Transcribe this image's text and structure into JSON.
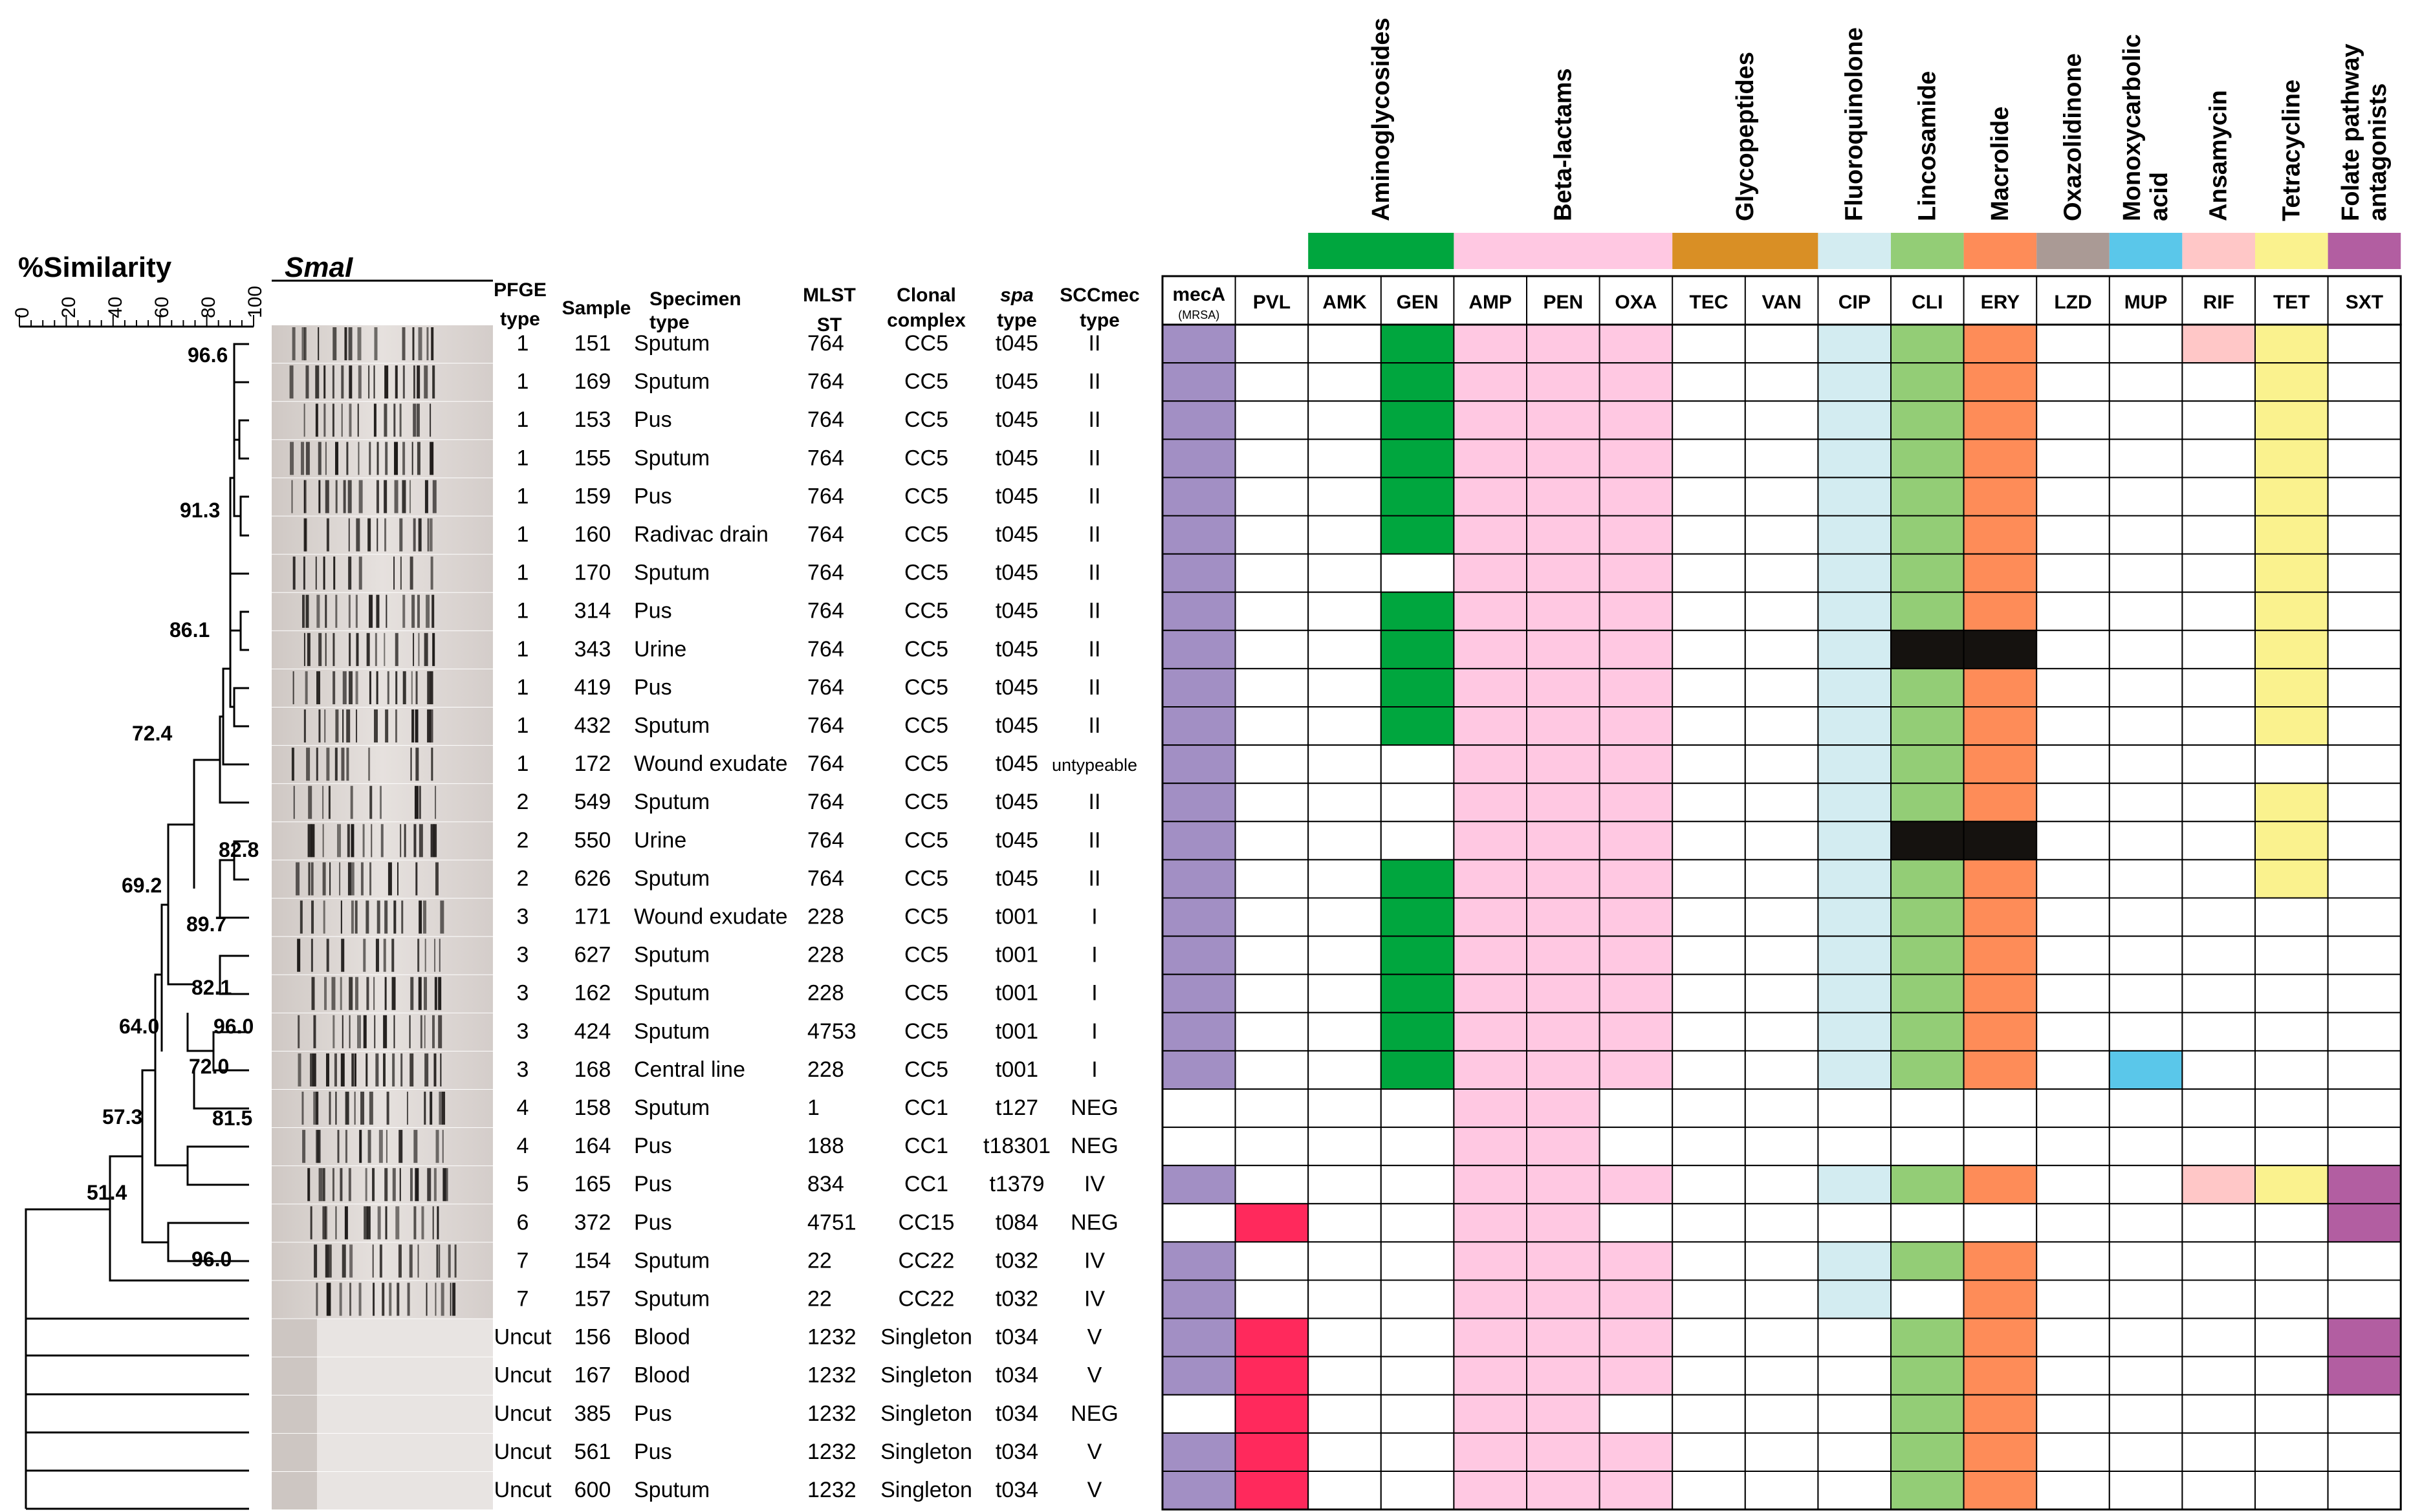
{
  "similarity_label": "%Similarity",
  "axis_ticks": [
    "0",
    "20",
    "40",
    "60",
    "80",
    "100"
  ],
  "enzyme_label": "SmaI",
  "headers": {
    "pfge": [
      "PFGE",
      "type"
    ],
    "sample": "Sample",
    "specimen": [
      "Specimen",
      "type"
    ],
    "mlst": [
      "MLST",
      "ST"
    ],
    "clonal": [
      "Clonal",
      "complex"
    ],
    "spa": [
      "spa",
      "type"
    ],
    "scc": [
      "SCCmec",
      "type"
    ]
  },
  "node_values": [
    "96.6",
    "91.3",
    "86.1",
    "72.4",
    "82.8",
    "69.2",
    "89.7",
    "82.1",
    "96.0",
    "72.0",
    "64.0",
    "81.5",
    "57.3",
    "51.4",
    "96.0"
  ],
  "categories": [
    {
      "name": "Aminoglycosides",
      "color": "#00a63e"
    },
    {
      "name": "Beta-lactams",
      "color": "#ffc8e2"
    },
    {
      "name": "Glycopeptides",
      "color": "#d98f25"
    },
    {
      "name": "Fluoroquinolone",
      "color": "#d3ecf1"
    },
    {
      "name": "Lincosamide",
      "color": "#93cd76"
    },
    {
      "name": "Macrolide",
      "color": "#fe8c58"
    },
    {
      "name": "Oxazolidinone",
      "color": "#aa9a95"
    },
    {
      "name": "Monoxycarbolic acid",
      "color": "#5ac7ea"
    },
    {
      "name": "Ansamycin",
      "color": "#ffc7c7"
    },
    {
      "name": "Tetracycline",
      "color": "#faf28e"
    },
    {
      "name": "Folate pathway antagonists",
      "color": "#b25ea1"
    }
  ],
  "columns": [
    "mecA",
    "PVL",
    "AMK",
    "GEN",
    "AMP",
    "PEN",
    "OXA",
    "TEC",
    "VAN",
    "CIP",
    "CLI",
    "ERY",
    "LZD",
    "MUP",
    "RIF",
    "TET",
    "SXT"
  ],
  "meca_sub": "(MRSA)",
  "cell_colors": {
    "P": "#a28fc4",
    "R": "#ff295c",
    "G": "#00a63e",
    "K": "#ffc8e2",
    "B": "#d3ecf1",
    "L": "#93cd76",
    "O": "#fe8c58",
    "C": "#5ac7ea",
    "S": "#ffc7c7",
    "Y": "#faf28e",
    "M": "#b25ea1",
    "X": "#15120f"
  },
  "rows": [
    {
      "pfge": "1",
      "sample": "151",
      "specimen": "Sputum",
      "mlst": "764",
      "cc": "CC5",
      "spa": "t045",
      "scc": "II",
      "cells": "P..GKKK..BLO..SY."
    },
    {
      "pfge": "1",
      "sample": "169",
      "specimen": "Sputum",
      "mlst": "764",
      "cc": "CC5",
      "spa": "t045",
      "scc": "II",
      "cells": "P..GKKK..BLO...Y."
    },
    {
      "pfge": "1",
      "sample": "153",
      "specimen": "Pus",
      "mlst": "764",
      "cc": "CC5",
      "spa": "t045",
      "scc": "II",
      "cells": "P..GKKK..BLO...Y."
    },
    {
      "pfge": "1",
      "sample": "155",
      "specimen": "Sputum",
      "mlst": "764",
      "cc": "CC5",
      "spa": "t045",
      "scc": "II",
      "cells": "P..GKKK..BLO...Y."
    },
    {
      "pfge": "1",
      "sample": "159",
      "specimen": "Pus",
      "mlst": "764",
      "cc": "CC5",
      "spa": "t045",
      "scc": "II",
      "cells": "P..GKKK..BLO...Y."
    },
    {
      "pfge": "1",
      "sample": "160",
      "specimen": "Radivac drain",
      "mlst": "764",
      "cc": "CC5",
      "spa": "t045",
      "scc": "II",
      "cells": "P..GKKK..BLO...Y."
    },
    {
      "pfge": "1",
      "sample": "170",
      "specimen": "Sputum",
      "mlst": "764",
      "cc": "CC5",
      "spa": "t045",
      "scc": "II",
      "cells": "P...KKK..BLO...Y."
    },
    {
      "pfge": "1",
      "sample": "314",
      "specimen": "Pus",
      "mlst": "764",
      "cc": "CC5",
      "spa": "t045",
      "scc": "II",
      "cells": "P..GKKK..BLO...Y."
    },
    {
      "pfge": "1",
      "sample": "343",
      "specimen": "Urine",
      "mlst": "764",
      "cc": "CC5",
      "spa": "t045",
      "scc": "II",
      "cells": "P..GKKK..BXX...Y."
    },
    {
      "pfge": "1",
      "sample": "419",
      "specimen": "Pus",
      "mlst": "764",
      "cc": "CC5",
      "spa": "t045",
      "scc": "II",
      "cells": "P..GKKK..BLO...Y."
    },
    {
      "pfge": "1",
      "sample": "432",
      "specimen": "Sputum",
      "mlst": "764",
      "cc": "CC5",
      "spa": "t045",
      "scc": "II",
      "cells": "P..GKKK..BLO...Y."
    },
    {
      "pfge": "1",
      "sample": "172",
      "specimen": "Wound exudate",
      "mlst": "764",
      "cc": "CC5",
      "spa": "t045",
      "scc": "untypeable",
      "cells": "P...KKK..BLO....."
    },
    {
      "pfge": "2",
      "sample": "549",
      "specimen": "Sputum",
      "mlst": "764",
      "cc": "CC5",
      "spa": "t045",
      "scc": "II",
      "cells": "P...KKK..BLO...Y."
    },
    {
      "pfge": "2",
      "sample": "550",
      "specimen": "Urine",
      "mlst": "764",
      "cc": "CC5",
      "spa": "t045",
      "scc": "II",
      "cells": "P...KKK..BXX...Y."
    },
    {
      "pfge": "2",
      "sample": "626",
      "specimen": "Sputum",
      "mlst": "764",
      "cc": "CC5",
      "spa": "t045",
      "scc": "II",
      "cells": "P..GKKK..BLO...Y."
    },
    {
      "pfge": "3",
      "sample": "171",
      "specimen": "Wound exudate",
      "mlst": "228",
      "cc": "CC5",
      "spa": "t001",
      "scc": "I",
      "cells": "P..GKKK..BLO....."
    },
    {
      "pfge": "3",
      "sample": "627",
      "specimen": "Sputum",
      "mlst": "228",
      "cc": "CC5",
      "spa": "t001",
      "scc": "I",
      "cells": "P..GKKK..BLO....."
    },
    {
      "pfge": "3",
      "sample": "162",
      "specimen": "Sputum",
      "mlst": "228",
      "cc": "CC5",
      "spa": "t001",
      "scc": "I",
      "cells": "P..GKKK..BLO....."
    },
    {
      "pfge": "3",
      "sample": "424",
      "specimen": "Sputum",
      "mlst": "4753",
      "cc": "CC5",
      "spa": "t001",
      "scc": "I",
      "cells": "P..GKKK..BLO....."
    },
    {
      "pfge": "3",
      "sample": "168",
      "specimen": "Central line",
      "mlst": "228",
      "cc": "CC5",
      "spa": "t001",
      "scc": "I",
      "cells": "P..GKKK..BLO.C..."
    },
    {
      "pfge": "4",
      "sample": "158",
      "specimen": "Sputum",
      "mlst": "1",
      "cc": "CC1",
      "spa": "t127",
      "scc": "NEG",
      "cells": "....KK..........."
    },
    {
      "pfge": "4",
      "sample": "164",
      "specimen": "Pus",
      "mlst": "188",
      "cc": "CC1",
      "spa": "t18301",
      "scc": "NEG",
      "cells": "....KK..........."
    },
    {
      "pfge": "5",
      "sample": "165",
      "specimen": "Pus",
      "mlst": "834",
      "cc": "CC1",
      "spa": "t1379",
      "scc": "IV",
      "cells": "P...KKK..BLO..SYM"
    },
    {
      "pfge": "6",
      "sample": "372",
      "specimen": "Pus",
      "mlst": "4751",
      "cc": "CC15",
      "spa": "t084",
      "scc": "NEG",
      "cells": ".R..KK..........M"
    },
    {
      "pfge": "7",
      "sample": "154",
      "specimen": "Sputum",
      "mlst": "22",
      "cc": "CC22",
      "spa": "t032",
      "scc": "IV",
      "cells": "P...KKK..BLO....."
    },
    {
      "pfge": "7",
      "sample": "157",
      "specimen": "Sputum",
      "mlst": "22",
      "cc": "CC22",
      "spa": "t032",
      "scc": "IV",
      "cells": "P...KKK..B.O....."
    },
    {
      "pfge": "Uncut",
      "sample": "156",
      "specimen": "Blood",
      "mlst": "1232",
      "cc": "Singleton",
      "spa": "t034",
      "scc": "V",
      "cells": "PR..KKK...LO....M"
    },
    {
      "pfge": "Uncut",
      "sample": "167",
      "specimen": "Blood",
      "mlst": "1232",
      "cc": "Singleton",
      "spa": "t034",
      "scc": "V",
      "cells": "PR..KKK...LO....M"
    },
    {
      "pfge": "Uncut",
      "sample": "385",
      "specimen": "Pus",
      "mlst": "1232",
      "cc": "Singleton",
      "spa": "t034",
      "scc": "NEG",
      "cells": ".R..KK....LO....."
    },
    {
      "pfge": "Uncut",
      "sample": "561",
      "specimen": "Pus",
      "mlst": "1232",
      "cc": "Singleton",
      "spa": "t034",
      "scc": "V",
      "cells": "PR..KKK...LO....."
    },
    {
      "pfge": "Uncut",
      "sample": "600",
      "specimen": "Sputum",
      "mlst": "1232",
      "cc": "Singleton",
      "spa": "t034",
      "scc": "V",
      "cells": "PR..KKK...LO....."
    }
  ]
}
